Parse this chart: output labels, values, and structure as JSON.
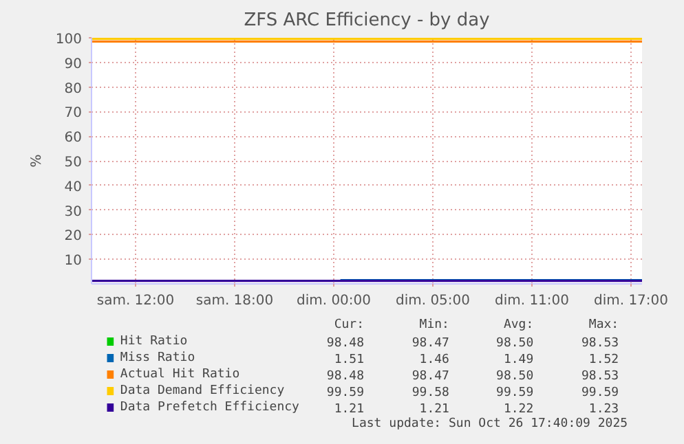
{
  "chart_data": {
    "type": "line",
    "title": "ZFS ARC Efficiency - by day",
    "ylabel": "%",
    "x": [
      "2025-10-25T07:20",
      "2025-10-26T16:40"
    ],
    "series": [
      {
        "name": "Hit Ratio",
        "color": "#00cc00",
        "values": [
          null,
          null
        ]
      },
      {
        "name": "Miss Ratio",
        "color": "#0066b3",
        "x": [
          "2025-10-25T22:24",
          "2025-10-26T16:40"
        ],
        "values": [
          1.5,
          1.5
        ]
      },
      {
        "name": "Actual Hit Ratio",
        "color": "#ff8000",
        "values": [
          98.5,
          98.5
        ]
      },
      {
        "name": "Data Demand Efficiency",
        "color": "#ffcc00",
        "values": [
          99.6,
          99.6
        ]
      },
      {
        "name": "Data Prefetch Efficiency",
        "color": "#330099",
        "values": [
          1.2,
          1.2
        ]
      }
    ],
    "xlim": [
      "2025-10-25T07:20",
      "2025-10-26T16:40"
    ],
    "ylim": [
      0,
      100
    ],
    "xticks": [
      {
        "value": "2025-10-25T10:00",
        "label": "sam. 12:00"
      },
      {
        "value": "2025-10-25T16:00",
        "label": "sam. 18:00"
      },
      {
        "value": "2025-10-25T22:00",
        "label": "dim. 00:00"
      },
      {
        "value": "2025-10-26T04:00",
        "label": "dim. 05:00"
      },
      {
        "value": "2025-10-26T10:00",
        "label": "dim. 11:00"
      },
      {
        "value": "2025-10-26T16:00",
        "label": "dim. 17:00"
      }
    ],
    "yticks": [
      10,
      20,
      30,
      40,
      50,
      60,
      70,
      80,
      90,
      100
    ],
    "grid": true,
    "legend": "bottom",
    "marker": "none",
    "line_style": "solid",
    "annotations": [
      "Cur:",
      "Min:",
      "Avg:",
      "Max:",
      "98.48",
      "98.47",
      "98.50",
      "98.53",
      "1.51",
      "1.46",
      "1.49",
      "1.52",
      "98.48",
      "98.47",
      "98.50",
      "98.53",
      "99.59",
      "99.58",
      "99.59",
      "99.59",
      "1.21",
      "1.21",
      "1.22",
      "1.23",
      "Last update: Sun Oct 26 17:40:09 2025"
    ]
  }
}
